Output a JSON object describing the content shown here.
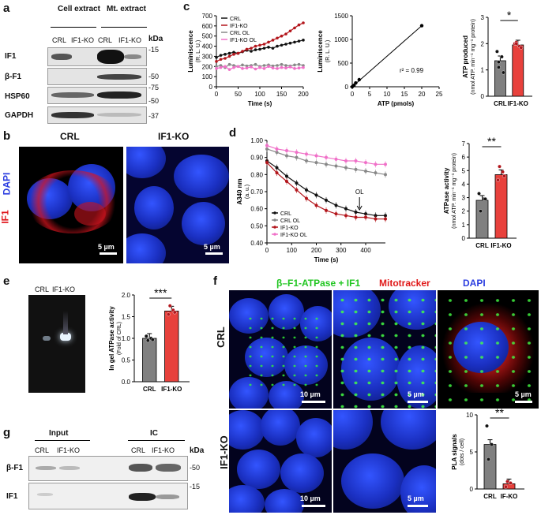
{
  "panels": {
    "a": "a",
    "b": "b",
    "c": "c",
    "d": "d",
    "e": "e",
    "f": "f",
    "g": "g"
  },
  "panel_a": {
    "group1": "Cell extract",
    "group2": "Mt. extract",
    "lanes": [
      "CRL",
      "IF1-KO",
      "CRL",
      "IF1-KO"
    ],
    "kda": "kDa",
    "rows": [
      "IF1",
      "β-F1",
      "HSP60",
      "GAPDH"
    ],
    "markers": [
      "-15",
      "-50",
      "-75",
      "-50",
      "-37"
    ]
  },
  "panel_b": {
    "col1": "CRL",
    "col2": "IF1-KO",
    "side_if1": "IF1",
    "side_dapi": "DAPI",
    "scale": "5 µm"
  },
  "panel_c": {
    "ylabel1": "Luminiscence",
    "ylabel1_unit": "(R. L. U.)",
    "xlabel1": "Time (s)",
    "legend": [
      "CRL",
      "IF1-KO",
      "CRL OL",
      "IF1-KO OL"
    ],
    "ylabel2": "Luminiscence",
    "ylabel2_unit": "(R. L. U.)",
    "xlabel2": "ATP (pmols)",
    "r2": "r² = 0.99",
    "ylabel3": "ATP produced",
    "ylabel3_unit": "(nmol ATP. min⁻¹ mg⁻¹ protein)",
    "sig": "*",
    "bars": [
      "CRL",
      "IF1-KO"
    ]
  },
  "panel_d": {
    "ylabel1": "A340 nm",
    "ylabel1_unit": "(a. u.)",
    "xlabel1": "Time (s)",
    "arrow": "OL",
    "legend": [
      "CRL",
      "CRL OL",
      "IF1-KO",
      "IF1-KO OL"
    ],
    "ylabel2": "ATPase activity",
    "ylabel2_unit": "(nmol ATP. min⁻¹ mg⁻¹ protein)",
    "sig": "**",
    "bars": [
      "CRL",
      "IF1-KO"
    ]
  },
  "panel_e": {
    "lanes": [
      "CRL",
      "IF1-KO"
    ],
    "ylabel": "In gel ATPase activity",
    "ylabel_unit": "(Fold of CRL)",
    "sig": "***",
    "bars": [
      "CRL",
      "IF1-KO"
    ]
  },
  "panel_f": {
    "title1": "β–F1-ATPase + IF1",
    "title2": "Mitotracker",
    "title3": "DAPI",
    "row1": "CRL",
    "row2": "IF1-KO",
    "scales": [
      "10 µm",
      "5 µm",
      "5 µm",
      "10 µm",
      "5 µm"
    ],
    "ylabel": "PLA signals",
    "ylabel_unit": "(dots / cell)",
    "sig": "**",
    "bars": [
      "CRL",
      "IF-KO"
    ]
  },
  "panel_g": {
    "input": "Input",
    "ic": "IC",
    "lanes": [
      "CRL",
      "IF1-KO",
      "CRL",
      "IF1-KO"
    ],
    "kda": "kDa",
    "rows": [
      "β-F1",
      "IF1"
    ],
    "markers": [
      "-50",
      "-15"
    ]
  },
  "colors": {
    "crl": "#111111",
    "ko": "#b3161c",
    "crl_ol": "#888888",
    "ko_ol": "#f070c8",
    "bar_crl": "#808080",
    "bar_ko": "#e8413c"
  },
  "chart_data": [
    {
      "type": "line",
      "title": "",
      "xlabel": "Time (s)",
      "ylabel": "Luminiscence (R. L. U.)",
      "xlim": [
        0,
        200
      ],
      "ylim": [
        0,
        700
      ],
      "x": [
        0,
        10,
        20,
        30,
        40,
        50,
        60,
        70,
        80,
        90,
        100,
        110,
        120,
        130,
        140,
        150,
        160,
        170,
        180,
        190,
        200
      ],
      "series": [
        {
          "name": "CRL",
          "values": [
            290,
            310,
            320,
            330,
            340,
            330,
            345,
            360,
            350,
            365,
            370,
            380,
            390,
            380,
            400,
            410,
            420,
            430,
            440,
            450,
            460
          ]
        },
        {
          "name": "IF1-KO",
          "values": [
            250,
            270,
            280,
            300,
            320,
            330,
            350,
            370,
            380,
            400,
            410,
            420,
            440,
            460,
            480,
            500,
            520,
            550,
            580,
            610,
            630
          ]
        },
        {
          "name": "CRL OL",
          "values": [
            200,
            210,
            190,
            220,
            210,
            200,
            215,
            205,
            210,
            220,
            200,
            210,
            215,
            205,
            210,
            220,
            210,
            205,
            215,
            220,
            210
          ]
        },
        {
          "name": "IF1-KO OL",
          "values": [
            180,
            190,
            200,
            170,
            190,
            200,
            180,
            185,
            195,
            175,
            190,
            180,
            200,
            185,
            180,
            190,
            185,
            195,
            180,
            185,
            190
          ]
        }
      ]
    },
    {
      "type": "scatter",
      "title": "",
      "xlabel": "ATP (pmols)",
      "ylabel": "Luminiscence (R. L. U.)",
      "xlim": [
        0,
        25
      ],
      "ylim": [
        0,
        1500
      ],
      "series": [
        {
          "name": "",
          "x": [
            0,
            0.5,
            1,
            2,
            20
          ],
          "values": [
            0,
            30,
            80,
            150,
            1290
          ]
        }
      ]
    },
    {
      "type": "bar",
      "title": "",
      "ylabel": "ATP produced (nmol ATP. min⁻¹ mg⁻¹ protein)",
      "ylim": [
        0,
        3
      ],
      "categories": [
        "CRL",
        "IF1-KO"
      ],
      "values": [
        1.35,
        1.95
      ],
      "points": [
        [
          1.7,
          1.5,
          1.3,
          0.9,
          1.1
        ],
        [
          2.0,
          1.9,
          2.05,
          1.85,
          2.0
        ]
      ]
    },
    {
      "type": "line",
      "title": "",
      "xlabel": "Time (s)",
      "ylabel": "A340 nm (a. u.)",
      "xlim": [
        0,
        480
      ],
      "ylim": [
        0.4,
        1.0
      ],
      "x": [
        0,
        40,
        80,
        120,
        160,
        200,
        240,
        280,
        320,
        360,
        400,
        440,
        480
      ],
      "series": [
        {
          "name": "CRL",
          "values": [
            0.88,
            0.84,
            0.79,
            0.75,
            0.71,
            0.68,
            0.65,
            0.62,
            0.6,
            0.58,
            0.57,
            0.56,
            0.56
          ]
        },
        {
          "name": "CRL OL",
          "values": [
            0.95,
            0.93,
            0.91,
            0.9,
            0.88,
            0.87,
            0.86,
            0.85,
            0.84,
            0.83,
            0.82,
            0.81,
            0.8
          ]
        },
        {
          "name": "IF1-KO",
          "values": [
            0.87,
            0.81,
            0.76,
            0.71,
            0.66,
            0.62,
            0.59,
            0.57,
            0.56,
            0.55,
            0.55,
            0.54,
            0.54
          ]
        },
        {
          "name": "IF1-KO OL",
          "values": [
            0.97,
            0.95,
            0.94,
            0.93,
            0.92,
            0.91,
            0.9,
            0.89,
            0.88,
            0.88,
            0.87,
            0.86,
            0.86
          ]
        }
      ]
    },
    {
      "type": "bar",
      "title": "",
      "ylabel": "ATPase activity (nmol ATP. min⁻¹ mg⁻¹ protein)",
      "ylim": [
        0,
        7
      ],
      "categories": [
        "CRL",
        "IF1-KO"
      ],
      "values": [
        2.8,
        4.7
      ],
      "points": [
        [
          3.3,
          2.9,
          2.0,
          2.9
        ],
        [
          4.3,
          4.9,
          5.3,
          4.6
        ]
      ]
    },
    {
      "type": "bar",
      "title": "",
      "ylabel": "In gel ATPase activity (Fold of CRL)",
      "ylim": [
        0,
        2.0
      ],
      "categories": [
        "CRL",
        "IF1-KO"
      ],
      "values": [
        1.0,
        1.63
      ],
      "points": [
        [
          1.05,
          1.0,
          0.95,
          0.97
        ],
        [
          1.55,
          1.65,
          1.75,
          1.6
        ]
      ]
    },
    {
      "type": "bar",
      "title": "",
      "ylabel": "PLA signals (dots / cell)",
      "ylim": [
        0,
        10
      ],
      "categories": [
        "CRL",
        "IF-KO"
      ],
      "values": [
        6.0,
        0.7
      ],
      "points": [
        [
          8.5,
          6.0,
          4.0
        ],
        [
          0.3,
          0.8,
          1.0
        ]
      ]
    }
  ]
}
